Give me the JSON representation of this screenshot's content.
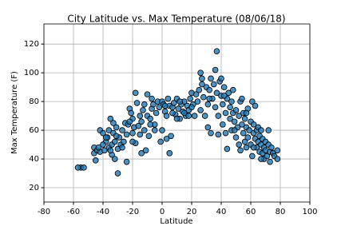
{
  "chart_data": {
    "type": "scatter",
    "title": "City Latitude vs. Max Temperature (08/06/18)",
    "x_label": "Latitude",
    "y_label": "Max Temperature (F)",
    "color": "#1f77b4",
    "edgecolor": "#000000",
    "grid": true,
    "xlim": [
      -80,
      100
    ],
    "xticks": [
      -80,
      -60,
      -40,
      -20,
      0,
      20,
      40,
      60,
      80,
      100
    ],
    "ylim": [
      10,
      134
    ],
    "yticks": [
      20,
      40,
      60,
      80,
      100,
      120
    ],
    "x": [
      -55,
      -57,
      -53,
      -46,
      -46,
      -45,
      -44,
      -42,
      -42,
      -40,
      -39,
      -38,
      -37,
      -36,
      -36,
      -35,
      -34,
      -34,
      -33,
      -33,
      -32,
      -32,
      -31,
      -30,
      -30,
      -29,
      -28,
      -27,
      -26,
      -25,
      -24,
      -23,
      -22,
      -21,
      -20,
      -20,
      -19,
      -18,
      -18,
      -17,
      -16,
      -15,
      -14,
      -14,
      -13,
      -12,
      -11,
      -10,
      -10,
      -9,
      -8,
      -7,
      -6,
      -5,
      -4,
      -3,
      -2,
      -1,
      0,
      0,
      1,
      2,
      3,
      3,
      4,
      5,
      5,
      6,
      7,
      8,
      9,
      10,
      11,
      12,
      13,
      14,
      15,
      16,
      17,
      18,
      19,
      20,
      21,
      22,
      23,
      24,
      25,
      26,
      26,
      27,
      28,
      29,
      30,
      31,
      31,
      32,
      33,
      33,
      34,
      35,
      36,
      36,
      37,
      37,
      38,
      38,
      39,
      40,
      40,
      41,
      41,
      42,
      43,
      43,
      44,
      44,
      45,
      46,
      46,
      47,
      47,
      48,
      48,
      49,
      50,
      50,
      51,
      52,
      52,
      53,
      53,
      54,
      54,
      55,
      55,
      56,
      56,
      57,
      57,
      58,
      58,
      59,
      60,
      60,
      61,
      61,
      62,
      62,
      63,
      63,
      64,
      64,
      65,
      65,
      66,
      66,
      67,
      67,
      68,
      68,
      69,
      69,
      70,
      70,
      71,
      72,
      72,
      73,
      74,
      75,
      76,
      78,
      78,
      -40,
      -43,
      -27,
      -20,
      -15,
      -5,
      10,
      15,
      20,
      -8,
      -35,
      -38,
      -31,
      -24,
      -22,
      -12,
      -7,
      2,
      7,
      12,
      18,
      27,
      32,
      42,
      49,
      57,
      62,
      67,
      73
    ],
    "values": [
      34,
      34,
      34,
      44,
      48,
      39,
      46,
      60,
      45,
      58,
      46,
      52,
      55,
      60,
      48,
      68,
      50,
      43,
      58,
      65,
      52,
      40,
      62,
      47,
      30,
      55,
      50,
      60,
      52,
      65,
      38,
      64,
      75,
      72,
      58,
      68,
      62,
      86,
      51,
      79,
      63,
      57,
      44,
      66,
      74,
      78,
      46,
      70,
      85,
      56,
      68,
      75,
      78,
      64,
      72,
      80,
      76,
      52,
      60,
      80,
      78,
      73,
      70,
      54,
      82,
      77,
      44,
      56,
      76,
      79,
      71,
      82,
      75,
      68,
      78,
      73,
      80,
      70,
      77,
      74,
      82,
      86,
      78,
      70,
      85,
      80,
      88,
      100,
      74,
      92,
      83,
      70,
      90,
      78,
      62,
      88,
      58,
      96,
      82,
      92,
      76,
      102,
      115,
      86,
      70,
      57,
      94,
      84,
      96,
      78,
      64,
      90,
      72,
      58,
      82,
      47,
      86,
      68,
      76,
      80,
      60,
      72,
      88,
      66,
      74,
      55,
      62,
      70,
      50,
      80,
      46,
      64,
      82,
      58,
      72,
      68,
      52,
      48,
      62,
      75,
      55,
      60,
      66,
      50,
      80,
      42,
      58,
      64,
      54,
      77,
      48,
      60,
      62,
      52,
      56,
      45,
      50,
      60,
      54,
      44,
      48,
      40,
      52,
      46,
      42,
      50,
      60,
      45,
      48,
      44,
      42,
      40,
      46,
      50,
      48,
      48,
      52,
      70,
      60,
      68,
      72,
      76,
      64,
      46,
      55,
      56,
      57,
      66,
      60,
      82,
      77,
      72,
      80,
      70,
      96,
      82,
      84,
      60,
      72,
      48,
      40,
      38
    ]
  }
}
